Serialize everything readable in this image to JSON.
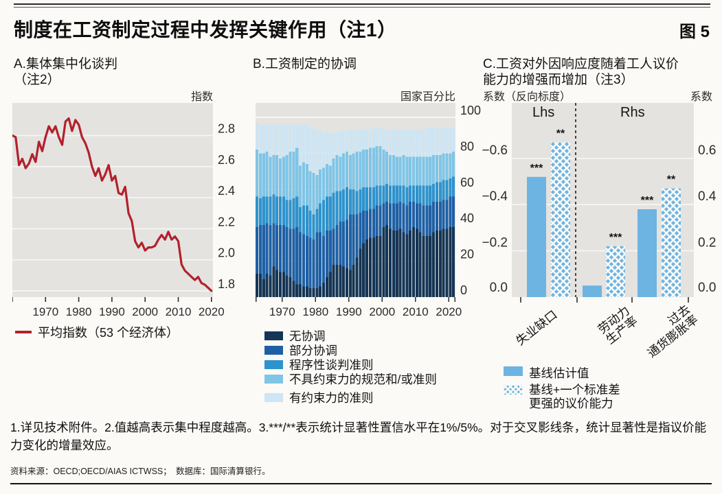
{
  "header": {
    "title": "制度在工资制定过程中发挥关键作用（注1）",
    "figure_label": "图 5"
  },
  "panels": {
    "a": {
      "title_line1": "A.集体集中化谈判",
      "title_line2": "（注2）",
      "unit": "指数",
      "legend": "平均指数（53 个经济体）"
    },
    "b": {
      "title": "B.工资制定的协调",
      "unit": "国家百分比"
    },
    "c": {
      "title_line1": "C.工资对外因响应度随着工人议价",
      "title_line2": "能力的增强而增加（注3）",
      "unit_left": "系数（反向标度）",
      "unit_right": "系数",
      "lhs_label": "Lhs",
      "rhs_label": "Rhs",
      "legend_solid": "基线估计值",
      "legend_hatched_line1": "基线+一个标准差",
      "legend_hatched_line2": "更强的议价能力"
    }
  },
  "footnote": "1.详见技术附件。2.值越高表示集中程度越高。3.***/**表示统计显著性置信水平在1%/5%。对于交叉影线条，统计显著性是指议价能力变化的增量效应。",
  "source": "资料来源：OECD;OECD/AIAS ICTWSS；　数据库：国际清算银行。",
  "colors": {
    "page_bg": "#fbfaf7",
    "plot_bg": "#e4e3e0",
    "gridline": "#f7f7f4",
    "line_red": "#b2212b",
    "bar_blue": "#6db4e2",
    "stack_navy": "#153555",
    "stack_blue": "#1e60a6",
    "stack_midblue": "#2d93ce",
    "stack_lightblue": "#7ec5e8",
    "stack_palest": "#cde5f4",
    "text": "#141414"
  },
  "chart_data": [
    {
      "panel": "A",
      "type": "line",
      "title": "A.集体集中化谈判（注2）",
      "ylabel": "指数",
      "legend": [
        "平均指数（53 个经济体）"
      ],
      "x_start": 1960,
      "x_step": 1,
      "values": [
        2.8,
        2.79,
        2.61,
        2.65,
        2.59,
        2.62,
        2.68,
        2.63,
        2.76,
        2.7,
        2.79,
        2.86,
        2.82,
        2.86,
        2.79,
        2.74,
        2.89,
        2.91,
        2.83,
        2.9,
        2.87,
        2.79,
        2.75,
        2.69,
        2.6,
        2.54,
        2.59,
        2.51,
        2.55,
        2.61,
        2.51,
        2.54,
        2.43,
        2.42,
        2.47,
        2.3,
        2.25,
        2.12,
        2.08,
        2.11,
        2.06,
        2.08,
        2.08,
        2.09,
        2.13,
        2.16,
        2.13,
        2.18,
        2.13,
        2.15,
        2.12,
        1.97,
        1.93,
        1.91,
        1.89,
        1.87,
        1.89,
        1.85,
        1.84,
        1.82,
        1.8
      ],
      "ylim": [
        1.76,
        3.01
      ],
      "yticks": [
        1.8,
        2.0,
        2.2,
        2.4,
        2.6,
        2.8
      ],
      "ytick_labels": [
        "1.8",
        "2.0",
        "2.2",
        "2.4",
        "2.6",
        "2.8"
      ],
      "xticks": [
        1960,
        1970,
        1980,
        1990,
        2000,
        2010,
        2020
      ],
      "xtick_labels": [
        "1970",
        "1980",
        "1990",
        "2000",
        "2010",
        "2020"
      ],
      "xtick_label_years": [
        1970,
        1980,
        1990,
        2000,
        2010,
        2020
      ],
      "grid": true,
      "legend_position": "bottom-left"
    },
    {
      "panel": "B",
      "type": "bar",
      "subtype": "stacked",
      "title": "B.工资制定的协调",
      "ylabel": "国家百分比",
      "x_start": 1962,
      "x_step": 1,
      "categories_years": "1962-2021, one bar per year",
      "series": [
        {
          "name": "无协调",
          "color_key": "stack_navy",
          "values": [
            13,
            13,
            10,
            13,
            12,
            17,
            15,
            14,
            14,
            12,
            11,
            9,
            7,
            7,
            6,
            6,
            5,
            5,
            5,
            6,
            8,
            11,
            14,
            18,
            18,
            18,
            17,
            16,
            15,
            18,
            22,
            27,
            30,
            32,
            33,
            33,
            34,
            34,
            39,
            40,
            38,
            37,
            37,
            38,
            36,
            35,
            37,
            39,
            38,
            36,
            34,
            34,
            34,
            36,
            37,
            37,
            38,
            38,
            39,
            39
          ]
        },
        {
          "name": "部分协调",
          "color_key": "stack_blue",
          "values": [
            26,
            27,
            30,
            28,
            28,
            24,
            25,
            26,
            26,
            27,
            27,
            29,
            32,
            29,
            29,
            28,
            28,
            27,
            31,
            30,
            26,
            26,
            23,
            20,
            22,
            24,
            25,
            27,
            31,
            28,
            24,
            20,
            18,
            16,
            16,
            16,
            17,
            17,
            13,
            13,
            14,
            15,
            15,
            15,
            16,
            16,
            16,
            14,
            14,
            16,
            17,
            17,
            17,
            17,
            16,
            16,
            16,
            16,
            17,
            17
          ]
        },
        {
          "name": "程序性谈判准则",
          "color_key": "stack_midblue",
          "values": [
            17,
            15,
            16,
            15,
            16,
            16,
            16,
            16,
            16,
            15,
            16,
            17,
            17,
            14,
            16,
            17,
            15,
            14,
            13,
            16,
            20,
            19,
            19,
            20,
            19,
            17,
            18,
            18,
            14,
            14,
            13,
            13,
            13,
            13,
            12,
            12,
            11,
            11,
            10,
            10,
            10,
            10,
            10,
            9,
            10,
            10,
            9,
            9,
            10,
            10,
            11,
            11,
            11,
            10,
            11,
            11,
            11,
            11,
            10,
            11
          ]
        },
        {
          "name": "不具约束力的规范和/或准则",
          "color_key": "stack_lightblue",
          "values": [
            26,
            25,
            24,
            25,
            22,
            22,
            23,
            21,
            22,
            25,
            27,
            26,
            27,
            23,
            24,
            23,
            22,
            23,
            19,
            19,
            18,
            18,
            17,
            19,
            20,
            19,
            20,
            20,
            19,
            20,
            22,
            21,
            21,
            21,
            22,
            22,
            22,
            22,
            20,
            18,
            17,
            17,
            16,
            16,
            17,
            17,
            16,
            16,
            16,
            16,
            16,
            16,
            16,
            16,
            15,
            15,
            15,
            15,
            14,
            14
          ]
        },
        {
          "name": "有约束力的准则",
          "color_key": "stack_palest",
          "values": [
            15,
            16,
            16,
            15,
            18,
            17,
            17,
            19,
            18,
            17,
            15,
            15,
            13,
            23,
            21,
            22,
            24,
            25,
            25,
            22,
            20,
            18,
            18,
            14,
            13,
            14,
            13,
            12,
            14,
            13,
            12,
            12,
            11,
            11,
            10,
            11,
            10,
            10,
            12,
            12,
            14,
            14,
            15,
            15,
            14,
            15,
            15,
            15,
            15,
            15,
            15,
            16,
            16,
            15,
            15,
            15,
            14,
            14,
            14,
            13
          ]
        }
      ],
      "ylim": [
        0,
        108
      ],
      "yticks": [
        0,
        20,
        40,
        60,
        80,
        100
      ],
      "ytick_labels": [
        "0",
        "20",
        "40",
        "60",
        "80",
        "100"
      ],
      "xtick_label_years": [
        1970,
        1980,
        1990,
        2000,
        2010,
        2020
      ],
      "xtick_labels": [
        "1970",
        "1980",
        "1990",
        "2000",
        "2010",
        "2020"
      ],
      "grid": true,
      "legend_position": "bottom"
    },
    {
      "panel": "C",
      "type": "bar",
      "subtype": "grouped",
      "title": "C.工资对外因响应度随着工人议价能力的增强而增加（注3）",
      "ylabel_left": "系数（反向标度）",
      "ylabel_right": "系数",
      "categories": [
        "失业缺口",
        "劳动力生产率",
        "过去通货膨胀率"
      ],
      "category_lines": [
        [
          "失业缺口"
        ],
        [
          "劳动力",
          "生产率"
        ],
        [
          "过去",
          "通货膨胀率"
        ]
      ],
      "category_axis": [
        "Lhs",
        "Rhs",
        "Rhs"
      ],
      "series": [
        {
          "name": "基线估计值",
          "style": "solid",
          "values": [
            -0.52,
            0.05,
            0.38
          ]
        },
        {
          "name": "基线+一个标准差更强的议价能力",
          "style": "crosshatch",
          "values": [
            -0.67,
            0.22,
            0.47
          ]
        }
      ],
      "significance": {
        "solid": [
          "***",
          "",
          "***"
        ],
        "hatched": [
          "**",
          "***",
          "**"
        ]
      },
      "left_axis_reversed": true,
      "ylim_magnitude": [
        0,
        0.84
      ],
      "yticks_left": [
        "0.0",
        "−0.2",
        "−0.4",
        "−0.6"
      ],
      "yticks_right": [
        "0.0",
        "0.2",
        "0.4",
        "0.6"
      ],
      "ytick_values": [
        0,
        0.2,
        0.4,
        0.6
      ],
      "grid": true,
      "legend_position": "bottom"
    }
  ]
}
